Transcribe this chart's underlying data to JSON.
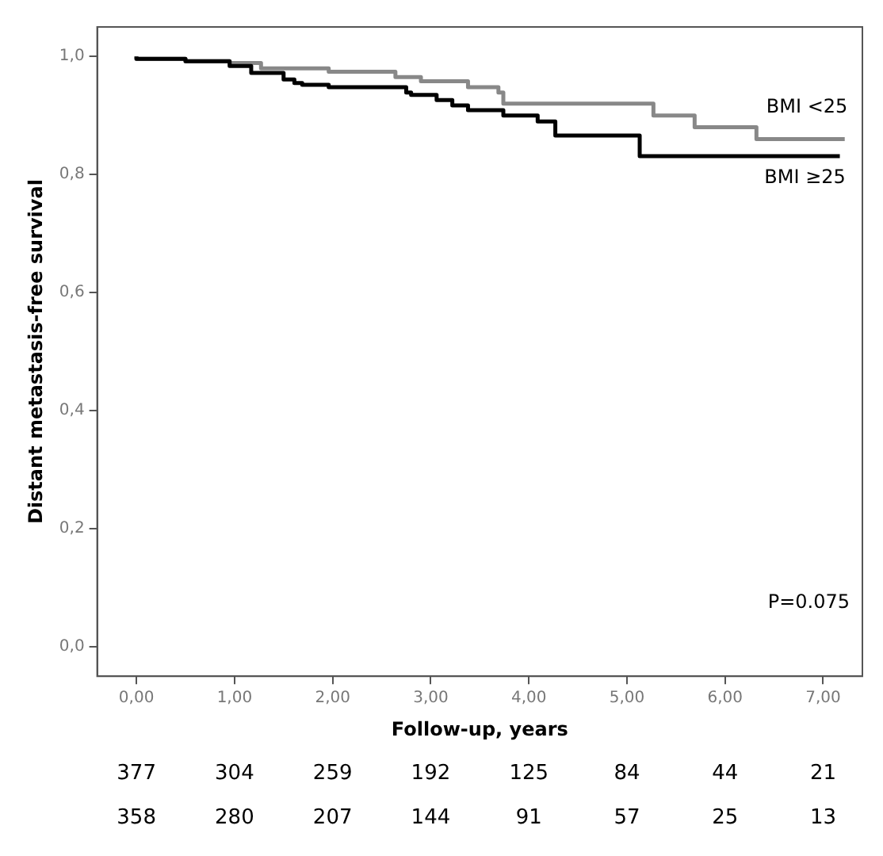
{
  "chart_data": {
    "type": "step",
    "ylabel": "Distant metastasis-free survival",
    "xlabel": "Follow-up, years",
    "xlim": [
      -0.4,
      7.4
    ],
    "ylim": [
      -0.05,
      1.05
    ],
    "xticks": [
      {
        "value": 0,
        "label": "0,00"
      },
      {
        "value": 1,
        "label": "1,00"
      },
      {
        "value": 2,
        "label": "2,00"
      },
      {
        "value": 3,
        "label": "3,00"
      },
      {
        "value": 4,
        "label": "4,00"
      },
      {
        "value": 5,
        "label": "5,00"
      },
      {
        "value": 6,
        "label": "6,00"
      },
      {
        "value": 7,
        "label": "7,00"
      }
    ],
    "yticks": [
      {
        "value": 0,
        "label": "0,0"
      },
      {
        "value": 0.2,
        "label": "0,2"
      },
      {
        "value": 0.4,
        "label": "0,4"
      },
      {
        "value": 0.6,
        "label": "0,6"
      },
      {
        "value": 0.8,
        "label": "0,8"
      },
      {
        "value": 1,
        "label": "1,0"
      }
    ],
    "grid": false,
    "legend": false,
    "marker": "none",
    "line_style": "solid",
    "series": [
      {
        "name": "BMI ≥25",
        "color": "#000000",
        "x": [
          0,
          0.5,
          0.95,
          1.17,
          1.5,
          1.61,
          1.69,
          1.96,
          2.75,
          2.8,
          3.06,
          3.22,
          3.38,
          3.74,
          4.09,
          4.27,
          5.13,
          6.3,
          7.17
        ],
        "values": [
          1.0,
          0.996,
          0.992,
          0.984,
          0.972,
          0.961,
          0.955,
          0.952,
          0.948,
          0.939,
          0.935,
          0.926,
          0.917,
          0.909,
          0.9,
          0.89,
          0.866,
          0.831,
          0.831
        ]
      },
      {
        "name": "BMI <25",
        "color": "#888888",
        "x": [
          0,
          0.5,
          0.95,
          1.27,
          1.96,
          2.64,
          2.9,
          3.38,
          3.69,
          3.74,
          5.27,
          5.69,
          6.32,
          6.59,
          7.22
        ],
        "values": [
          1.0,
          0.996,
          0.992,
          0.989,
          0.98,
          0.974,
          0.965,
          0.958,
          0.948,
          0.939,
          0.92,
          0.9,
          0.88,
          0.86,
          0.86
        ]
      }
    ],
    "annotations": [
      "P=0.075",
      "377",
      "304",
      "259",
      "192",
      "125",
      "84",
      "44",
      "21",
      "358",
      "280",
      "207",
      "144",
      "91",
      "57",
      "25",
      "13"
    ]
  }
}
